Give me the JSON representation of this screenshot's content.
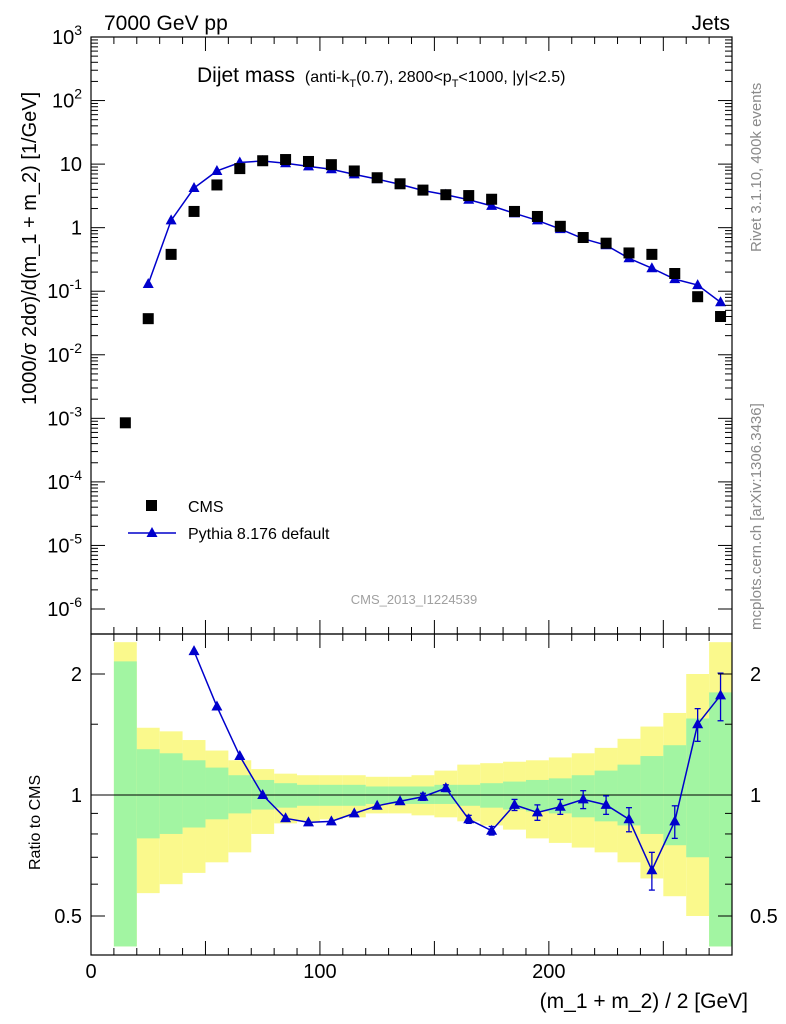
{
  "header": {
    "energy_label": "7000 GeV pp",
    "category_label": "Jets",
    "plot_title_main": "Dijet mass",
    "plot_title_sub": "(anti-k",
    "plot_title_sub_T": "T",
    "plot_title_sub2": "(0.7), 2800<p",
    "plot_title_sub_T2": "T",
    "plot_title_sub3": "<1000, |y|<2.5)",
    "analysis_id": "CMS_2013_I1224539"
  },
  "side_labels": {
    "rivet": "Rivet 3.1.10,  400k events",
    "mcplots": "mcplots.cern.ch [arXiv:1306.3436]"
  },
  "legend": {
    "data_label": "CMS",
    "mc_label": "Pythia 8.176 default"
  },
  "colors": {
    "mc": "#0000cc",
    "band_inner": "#a2f5a2",
    "band_outer": "#faf98c",
    "data": "#000000"
  },
  "chart_data": [
    {
      "type": "scatter",
      "panel": "main",
      "ylabel": "1000/σ 2dσ)/d(m_1 + m_2) [1/GeV]",
      "yscale": "log",
      "ylim": [
        3e-07,
        1000
      ],
      "xlim": [
        0,
        280
      ],
      "y_tick_labels": [
        "10^-6",
        "10^-5",
        "10^-4",
        "10^-3",
        "10^-2",
        "10^-1",
        "1",
        "10",
        "10^2",
        "10^3"
      ],
      "series": [
        {
          "name": "CMS",
          "x": [
            15,
            25,
            35,
            45,
            55,
            65,
            75,
            85,
            95,
            105,
            115,
            125,
            135,
            145,
            155,
            165,
            175,
            185,
            195,
            205,
            215,
            225,
            235,
            245,
            255,
            265,
            275
          ],
          "y": [
            0.00085,
            0.037,
            0.38,
            1.8,
            4.7,
            8.5,
            11.3,
            11.8,
            11.0,
            9.8,
            7.8,
            6.1,
            4.9,
            3.9,
            3.3,
            3.2,
            2.8,
            1.8,
            1.5,
            1.05,
            0.7,
            0.57,
            0.4,
            0.38,
            0.19,
            0.082,
            0.04
          ]
        },
        {
          "name": "Pythia 8.176 default",
          "x": [
            25,
            35,
            45,
            55,
            65,
            75,
            85,
            95,
            105,
            115,
            125,
            135,
            145,
            155,
            165,
            175,
            185,
            195,
            205,
            215,
            225,
            235,
            245,
            255,
            265,
            275
          ],
          "y": [
            0.13,
            1.3,
            4.2,
            7.8,
            10.6,
            11.2,
            10.3,
            9.2,
            8.3,
            6.9,
            5.8,
            4.8,
            3.85,
            3.3,
            2.75,
            2.2,
            1.68,
            1.3,
            0.95,
            0.67,
            0.53,
            0.33,
            0.23,
            0.155,
            0.125,
            0.067
          ]
        }
      ]
    },
    {
      "type": "line",
      "panel": "ratio",
      "ylabel": "Ratio to CMS",
      "xlabel": "(m_1 + m_2) / 2 [GeV]",
      "yscale": "log",
      "ylim": [
        0.42,
        2.4
      ],
      "xlim": [
        0,
        280
      ],
      "x_tick_labels": [
        "0",
        "100",
        "200"
      ],
      "y_tick_labels": [
        "0.5",
        "1",
        "2"
      ],
      "series": [
        {
          "name": "Pythia 8.176 default",
          "x": [
            45,
            55,
            65,
            75,
            85,
            95,
            105,
            115,
            125,
            135,
            145,
            155,
            165,
            175,
            185,
            195,
            205,
            215,
            225,
            235,
            245,
            255,
            265,
            275
          ],
          "y": [
            2.28,
            1.66,
            1.25,
            1.0,
            0.875,
            0.855,
            0.86,
            0.9,
            0.94,
            0.965,
            0.99,
            1.04,
            0.87,
            0.815,
            0.945,
            0.905,
            0.935,
            0.975,
            0.945,
            0.87,
            0.65,
            0.86,
            1.5,
            1.77
          ],
          "yerr": [
            0,
            0,
            0,
            0,
            0,
            0,
            0,
            0,
            0,
            0,
            0.02,
            0.02,
            0.02,
            0.02,
            0.03,
            0.04,
            0.04,
            0.05,
            0.05,
            0.06,
            0.07,
            0.08,
            0.14,
            0.24
          ]
        }
      ],
      "bands": {
        "x_edges": [
          10,
          20,
          30,
          40,
          50,
          60,
          70,
          80,
          90,
          100,
          110,
          120,
          130,
          140,
          150,
          160,
          170,
          180,
          190,
          200,
          210,
          220,
          230,
          240,
          250,
          260,
          270,
          280
        ],
        "inner_low": [
          0.42,
          0.78,
          0.8,
          0.83,
          0.87,
          0.9,
          0.92,
          0.93,
          0.94,
          0.94,
          0.94,
          0.95,
          0.95,
          0.95,
          0.95,
          0.94,
          0.93,
          0.92,
          0.91,
          0.9,
          0.88,
          0.86,
          0.84,
          0.8,
          0.75,
          0.7,
          0.42
        ],
        "inner_high": [
          2.15,
          1.3,
          1.27,
          1.22,
          1.17,
          1.12,
          1.09,
          1.07,
          1.06,
          1.06,
          1.06,
          1.05,
          1.05,
          1.05,
          1.06,
          1.06,
          1.07,
          1.08,
          1.09,
          1.1,
          1.12,
          1.15,
          1.19,
          1.25,
          1.33,
          1.55,
          1.8
        ],
        "outer_low": [
          0.42,
          0.57,
          0.6,
          0.64,
          0.68,
          0.72,
          0.8,
          0.85,
          0.86,
          0.87,
          0.88,
          0.9,
          0.9,
          0.89,
          0.88,
          0.86,
          0.84,
          0.82,
          0.78,
          0.76,
          0.74,
          0.72,
          0.68,
          0.62,
          0.56,
          0.5,
          0.42
        ],
        "outer_high": [
          2.4,
          1.47,
          1.44,
          1.37,
          1.29,
          1.22,
          1.16,
          1.13,
          1.12,
          1.12,
          1.12,
          1.11,
          1.11,
          1.12,
          1.15,
          1.19,
          1.2,
          1.21,
          1.22,
          1.24,
          1.27,
          1.31,
          1.38,
          1.48,
          1.6,
          2.0,
          2.4
        ]
      }
    }
  ]
}
